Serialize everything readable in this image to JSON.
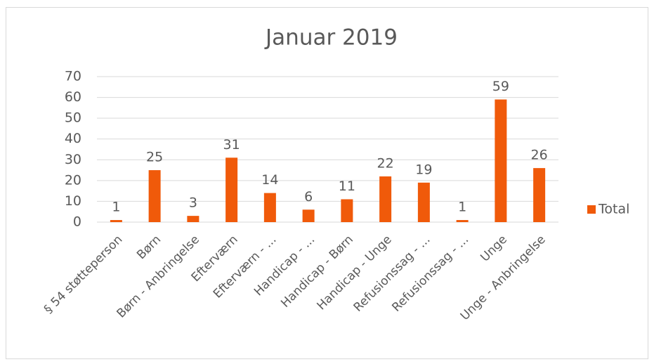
{
  "chart_data": {
    "type": "bar",
    "title": "Januar 2019",
    "categories": [
      "§ 54 støtteperson",
      "Børn",
      "Børn - Anbringelse",
      "Efterværn",
      "Efterværn - ...",
      "Handicap - ...",
      "Handicap - Børn",
      "Handicap - Unge",
      "Refusionssag - ...",
      "Refusionssag - ...",
      "Unge",
      "Unge - Anbringelse"
    ],
    "series": [
      {
        "name": "Total",
        "color": "#f05a0a",
        "values": [
          1,
          25,
          3,
          31,
          14,
          6,
          11,
          22,
          19,
          1,
          59,
          26
        ]
      }
    ],
    "ylim": [
      0,
      70
    ],
    "yticks": [
      0,
      10,
      20,
      30,
      40,
      50,
      60,
      70
    ],
    "grid": true,
    "legend": "right"
  }
}
